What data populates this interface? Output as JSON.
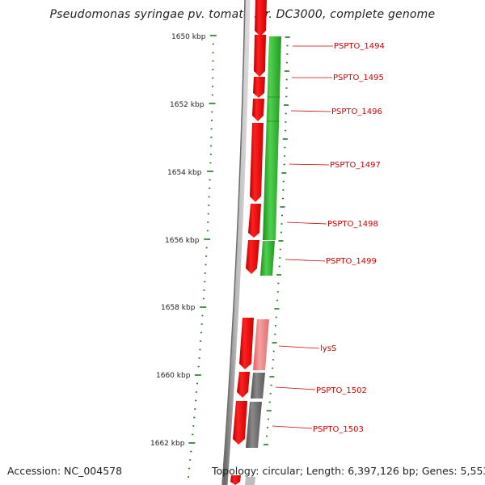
{
  "title": "Pseudomonas syringae pv. tomato str. DC3000, complete genome",
  "footer": {
    "accession": "Accession: NC_004578",
    "summary": "Topology: circular; Length: 6,397,126 bp; Genes: 5,553"
  },
  "scale": {
    "ticks": [
      {
        "label": "1650 kbp",
        "kbp": 1650
      },
      {
        "label": "1652 kbp",
        "kbp": 1652
      },
      {
        "label": "1654 kbp",
        "kbp": 1654
      },
      {
        "label": "1656 kbp",
        "kbp": 1656
      },
      {
        "label": "1658 kbp",
        "kbp": 1658
      },
      {
        "label": "1660 kbp",
        "kbp": 1660
      },
      {
        "label": "1662 kbp",
        "kbp": 1662
      }
    ]
  },
  "colors": {
    "cds": "#ee0000",
    "forward_gene": "#2fb82f",
    "pink_gene": "#f08080",
    "gray_gene": "#6e6e6e",
    "tick": "#1a7a1a",
    "backbone": "#888888",
    "label": "#cc0000"
  },
  "genes": [
    {
      "name": "PSPTO_1494"
    },
    {
      "name": "PSPTO_1495"
    },
    {
      "name": "PSPTO_1496"
    },
    {
      "name": "PSPTO_1497"
    },
    {
      "name": "PSPTO_1498"
    },
    {
      "name": "PSPTO_1499"
    },
    {
      "name": "lysS"
    },
    {
      "name": "PSPTO_1502"
    },
    {
      "name": "PSPTO_1503"
    }
  ]
}
